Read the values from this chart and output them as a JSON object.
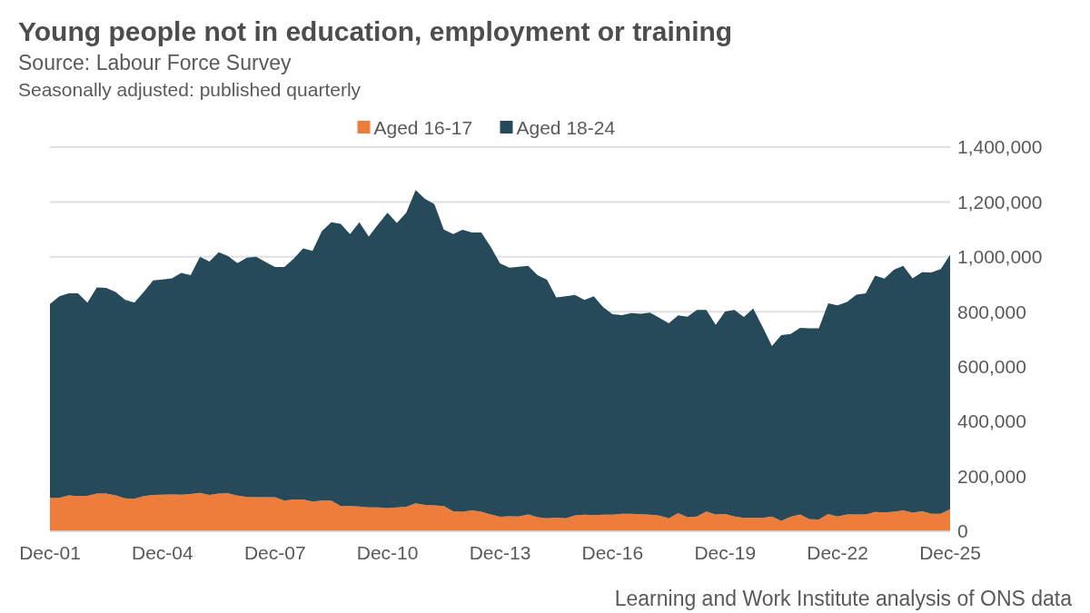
{
  "chart_data": {
    "type": "area",
    "stacked": true,
    "title": "Young people not in education, employment or training",
    "subtitle": "Source: Labour Force Survey",
    "annotations": [
      "Seasonally adjusted: published quarterly",
      "Learning and Work Institute analysis of ONS data"
    ],
    "categories": [
      "Dec-01",
      null,
      null,
      null,
      null,
      null,
      null,
      null,
      null,
      null,
      null,
      null,
      "Dec-04",
      null,
      null,
      null,
      null,
      null,
      null,
      null,
      null,
      null,
      null,
      null,
      "Dec-07",
      null,
      null,
      null,
      null,
      null,
      null,
      null,
      null,
      null,
      null,
      null,
      "Dec-10",
      null,
      null,
      null,
      null,
      null,
      null,
      null,
      null,
      null,
      null,
      null,
      "Dec-13",
      null,
      null,
      null,
      null,
      null,
      null,
      null,
      null,
      null,
      null,
      null,
      "Dec-16",
      null,
      null,
      null,
      null,
      null,
      null,
      null,
      null,
      null,
      null,
      null,
      "Dec-19",
      null,
      null,
      null,
      null,
      null,
      null,
      null,
      null,
      null,
      null,
      null,
      "Dec-22",
      null,
      null,
      null,
      null,
      null,
      null,
      null,
      null,
      null,
      null,
      null,
      "Dec-25"
    ],
    "series": [
      {
        "name": "Aged 16-17",
        "color": "#ed7d3a",
        "values": [
          122000,
          122000,
          131000,
          128000,
          129000,
          137000,
          137000,
          131000,
          120000,
          118000,
          128000,
          132000,
          133000,
          134000,
          133000,
          136000,
          140000,
          132000,
          137000,
          138000,
          130000,
          125000,
          124000,
          124000,
          124000,
          112000,
          116000,
          116000,
          108000,
          112000,
          112000,
          92000,
          92000,
          90000,
          87000,
          87000,
          84000,
          87000,
          89000,
          102000,
          96000,
          94000,
          92000,
          73000,
          71000,
          76000,
          71000,
          61000,
          53000,
          55000,
          54000,
          61000,
          51000,
          47000,
          50000,
          47000,
          58000,
          60000,
          59000,
          60000,
          60000,
          64000,
          64000,
          62000,
          60000,
          57000,
          47000,
          66000,
          51000,
          54000,
          72000,
          61000,
          63000,
          54000,
          49000,
          49000,
          49000,
          54000,
          38000,
          53000,
          61000,
          44000,
          43000,
          63000,
          54000,
          61000,
          61000,
          61000,
          70000,
          69000,
          71000,
          76000,
          68000,
          73000,
          64000,
          64000,
          80000
        ]
      },
      {
        "name": "Aged 18-24",
        "color": "#264a59",
        "values": [
          706000,
          734000,
          736000,
          739000,
          704000,
          752000,
          750000,
          741000,
          724000,
          715000,
          744000,
          782000,
          785000,
          788000,
          809000,
          797000,
          860000,
          851000,
          880000,
          865000,
          847000,
          872000,
          876000,
          857000,
          839000,
          851000,
          878000,
          915000,
          914000,
          982000,
          1014000,
          1028000,
          991000,
          1036000,
          987000,
          1032000,
          1077000,
          1037000,
          1072000,
          1142000,
          1115000,
          1098000,
          1008000,
          1010000,
          1028000,
          1013000,
          1018000,
          976000,
          923000,
          906000,
          910000,
          906000,
          882000,
          870000,
          802000,
          809000,
          803000,
          783000,
          797000,
          757000,
          731000,
          724000,
          731000,
          731000,
          737000,
          721000,
          711000,
          721000,
          731000,
          753000,
          735000,
          691000,
          738000,
          753000,
          732000,
          763000,
          696000,
          621000,
          677000,
          666000,
          680000,
          696000,
          697000,
          768000,
          769000,
          775000,
          801000,
          806000,
          862000,
          852000,
          882000,
          891000,
          854000,
          871000,
          879000,
          892000,
          928000
        ]
      }
    ],
    "ylim": [
      0,
      1400000
    ],
    "yticks": [
      0,
      {
        "value": 200000,
        "label": "200,000"
      },
      {
        "value": 400000,
        "label": "400,000"
      },
      {
        "value": 600000,
        "label": "600,000"
      },
      {
        "value": 800000,
        "label": "800,000"
      },
      {
        "value": 1000000,
        "label": "1,000,000"
      },
      {
        "value": 1200000,
        "label": "1,200,000"
      },
      {
        "value": 1400000,
        "label": "1,400,000"
      }
    ],
    "grid": "y",
    "legend": "top"
  }
}
